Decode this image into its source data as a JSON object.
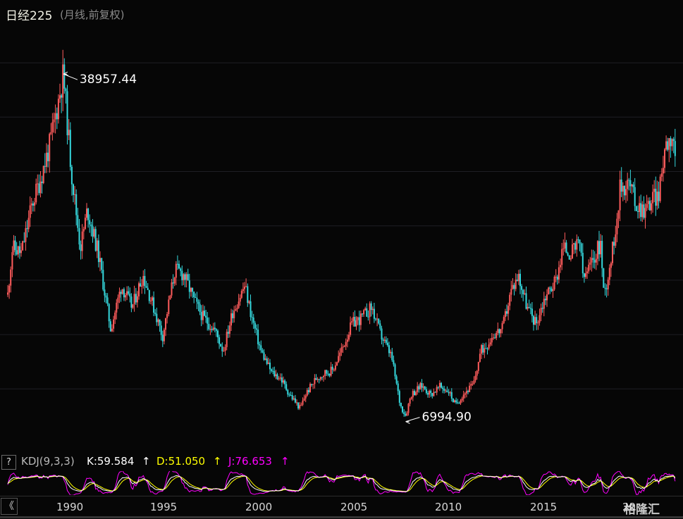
{
  "header": {
    "title": "日经225",
    "subtitle": "(月线,前复权)"
  },
  "price_chart": {
    "high_label": "38957.44",
    "low_label": "6994.90",
    "colors": {
      "up": "#ff5c5c",
      "down": "#35d8dd",
      "grid": "#1e1e24",
      "label": "#ffffff"
    }
  },
  "indicator": {
    "help_label": "?",
    "name": "KDJ(9,3,3)",
    "k_text": "K:59.584",
    "d_text": "D:51.050",
    "j_text": "J:76.653",
    "arrow": "↑",
    "colors": {
      "k": "#ffffff",
      "d": "#ffff00",
      "j": "#ff00ff"
    }
  },
  "axis": {
    "back_label": "《",
    "years": [
      "1990",
      "1995",
      "2000",
      "2005",
      "2010",
      "2015",
      "20"
    ],
    "watermark": "格隆汇"
  },
  "chart_data": {
    "type": "candlestick",
    "title": "日经225",
    "subtitle": "(月线,前复权)",
    "x_unit": "year",
    "x_range": [
      1986.8,
      2024.3
    ],
    "y_range": [
      6000,
      41500
    ],
    "keypoints": [
      [
        1986.8,
        18000
      ],
      [
        1987.1,
        23000
      ],
      [
        1987.6,
        22500
      ],
      [
        1988.2,
        27000
      ],
      [
        1988.7,
        29500
      ],
      [
        1989.2,
        32500
      ],
      [
        1989.95,
        38957.44
      ],
      [
        1990.4,
        30000
      ],
      [
        1990.9,
        23000
      ],
      [
        1991.3,
        26500
      ],
      [
        1991.9,
        22500
      ],
      [
        1992.6,
        15500
      ],
      [
        1993.2,
        19500
      ],
      [
        1993.8,
        17500
      ],
      [
        1994.4,
        20500
      ],
      [
        1995.1,
        17000
      ],
      [
        1995.5,
        14800
      ],
      [
        1996.2,
        21000
      ],
      [
        1996.7,
        20500
      ],
      [
        1997.3,
        18000
      ],
      [
        1997.8,
        16500
      ],
      [
        1998.4,
        15500
      ],
      [
        1998.9,
        13500
      ],
      [
        1999.4,
        17000
      ],
      [
        2000.1,
        19500
      ],
      [
        2000.5,
        16500
      ],
      [
        2001.0,
        13500
      ],
      [
        2001.6,
        11500
      ],
      [
        2002.1,
        11000
      ],
      [
        2002.6,
        9500
      ],
      [
        2003.2,
        8200
      ],
      [
        2003.5,
        9500
      ],
      [
        2004.1,
        11000
      ],
      [
        2004.6,
        11500
      ],
      [
        2005.0,
        11700
      ],
      [
        2005.5,
        13500
      ],
      [
        2006.1,
        16000
      ],
      [
        2006.6,
        16500
      ],
      [
        2007.2,
        17500
      ],
      [
        2007.7,
        15000
      ],
      [
        2008.3,
        13000
      ],
      [
        2008.8,
        8500
      ],
      [
        2009.1,
        7568
      ],
      [
        2009.4,
        9500
      ],
      [
        2010.0,
        10300
      ],
      [
        2010.5,
        9500
      ],
      [
        2011.0,
        10200
      ],
      [
        2011.5,
        9800
      ],
      [
        2011.9,
        8500
      ],
      [
        2012.3,
        9500
      ],
      [
        2012.9,
        10400
      ],
      [
        2013.3,
        13500
      ],
      [
        2013.6,
        14000
      ],
      [
        2014.0,
        15000
      ],
      [
        2014.5,
        15500
      ],
      [
        2015.0,
        19000
      ],
      [
        2015.4,
        20500
      ],
      [
        2015.9,
        17500
      ],
      [
        2016.4,
        16000
      ],
      [
        2016.9,
        18500
      ],
      [
        2017.5,
        20000
      ],
      [
        2017.9,
        23000
      ],
      [
        2018.4,
        22500
      ],
      [
        2018.9,
        23500
      ],
      [
        2019.0,
        20000
      ],
      [
        2019.5,
        21500
      ],
      [
        2020.0,
        23500
      ],
      [
        2020.2,
        18500
      ],
      [
        2020.7,
        23000
      ],
      [
        2021.1,
        28500
      ],
      [
        2021.6,
        29000
      ],
      [
        2022.0,
        27000
      ],
      [
        2022.5,
        26500
      ],
      [
        2022.9,
        27500
      ],
      [
        2023.3,
        28000
      ],
      [
        2023.6,
        32500
      ],
      [
        2024.0,
        33500
      ],
      [
        2024.2,
        31500
      ]
    ],
    "annotations": [
      {
        "label": "38957.44",
        "x": 1989.95,
        "y": 38957.44
      },
      {
        "label": "6994.90",
        "x": 2009.1,
        "y": 6994.9
      }
    ],
    "x_tick_labels": [
      "1990",
      "1995",
      "2000",
      "2005",
      "2010",
      "2015",
      "20"
    ],
    "indicator": {
      "name": "KDJ(9,3,3)",
      "K": 59.584,
      "D": 51.05,
      "J": 76.653
    }
  }
}
